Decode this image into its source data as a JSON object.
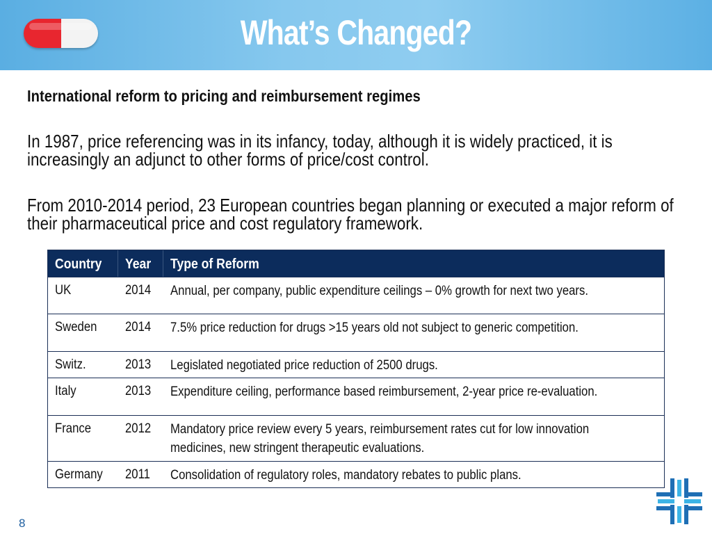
{
  "header": {
    "title": "What’s Changed?",
    "pill_colors": {
      "left": "#e8262f",
      "right": "#f3f3f3"
    }
  },
  "content": {
    "subtitle": "International reform to pricing and reimbursement regimes",
    "paragraph1": "In 1987, price referencing was in its infancy, today, although it is widely practiced, it is increasingly an adjunct to other forms of price/cost control.",
    "paragraph2": "From 2010-2014 period, 23 European countries began planning or executed a major reform of their pharmaceutical price and cost regulatory framework."
  },
  "table": {
    "headers": [
      "Country",
      "Year",
      "Type of Reform"
    ],
    "rows": [
      {
        "country": "UK",
        "year": "2014",
        "reform": "Annual, per company, public expenditure ceilings – 0% growth for next two years."
      },
      {
        "country": "Sweden",
        "year": "2014",
        "reform": "7.5% price reduction for drugs >15 years old not subject to generic competition."
      },
      {
        "country": "Switz.",
        "year": "2013",
        "reform": "Legislated negotiated price reduction of 2500 drugs."
      },
      {
        "country": "Italy",
        "year": "2013",
        "reform": "Expenditure ceiling, performance based reimbursement, 2-year price re-evaluation."
      },
      {
        "country": "France",
        "year": "2012",
        "reform": "Mandatory price review every 5 years, reimbursement rates cut for low innovation medicines, new stringent therapeutic evaluations."
      },
      {
        "country": "Germany",
        "year": "2011",
        "reform": "Consolidation of regulatory roles, mandatory rebates to public plans."
      }
    ]
  },
  "footer": {
    "page_number": "8"
  },
  "colors": {
    "header_blue": "#86c8ee",
    "table_header": "#0c2c5c",
    "logo_blue": "#1f6fb5",
    "logo_cyan": "#3cb4e6"
  },
  "icons": {
    "brand": "pill-icon",
    "logo": "cross-logo-icon"
  }
}
